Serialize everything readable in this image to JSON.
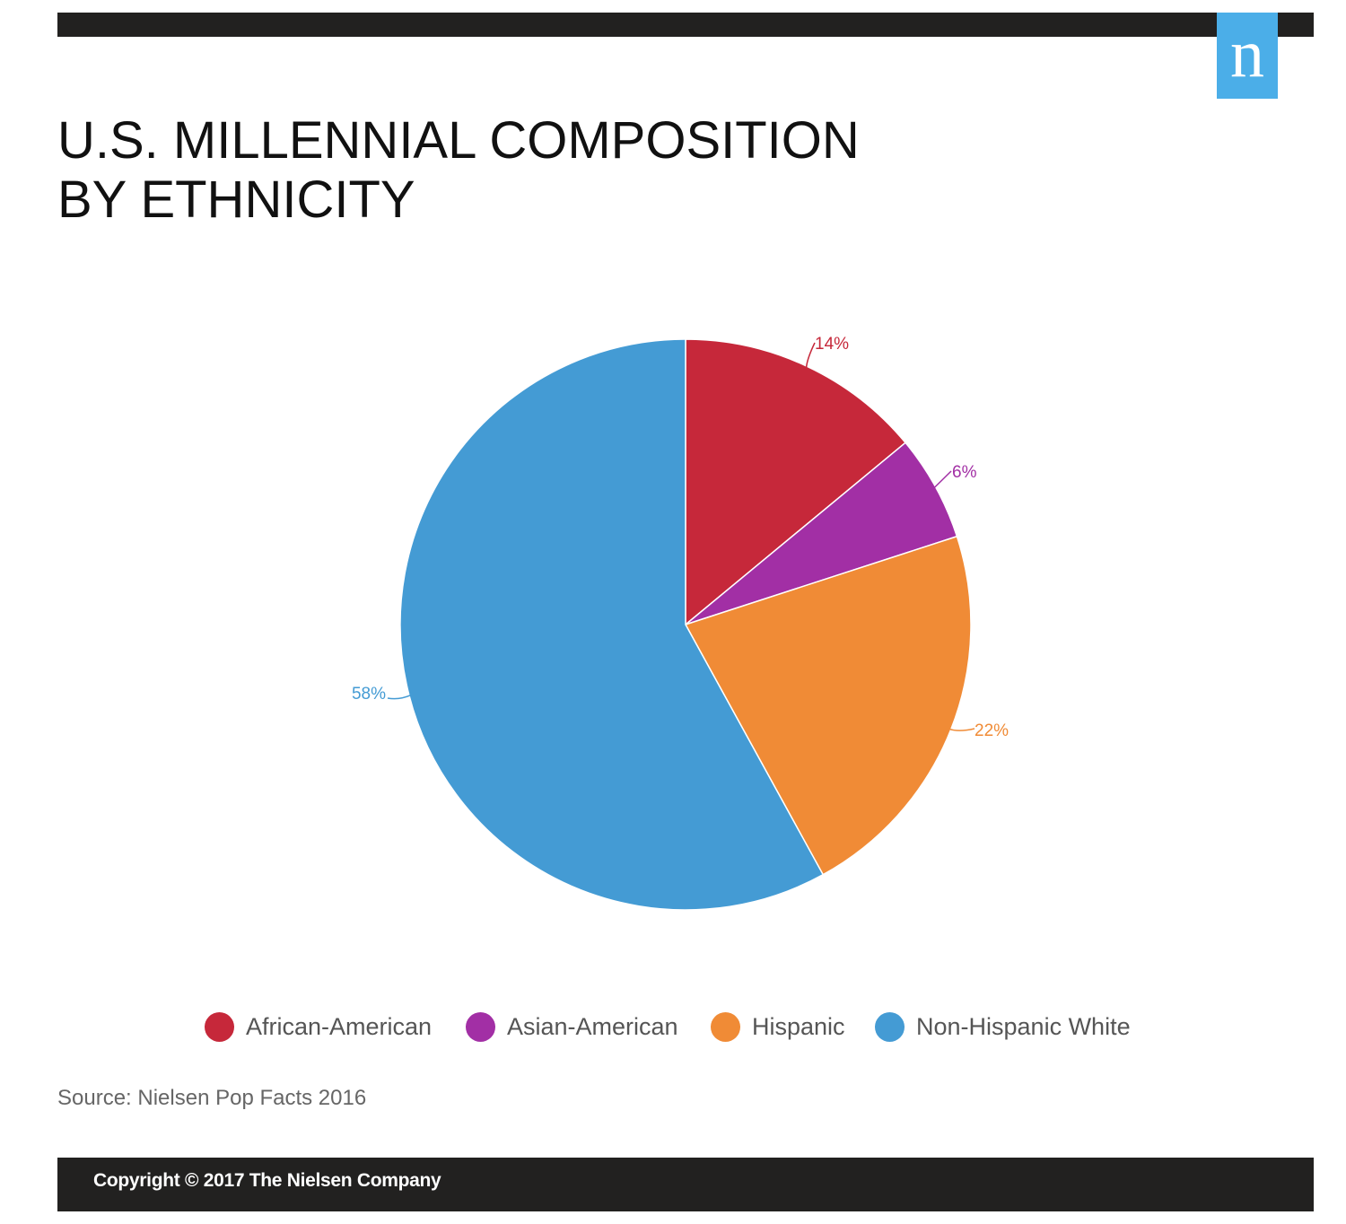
{
  "brand": {
    "logo_letter": "n",
    "logo_color": "#4baee8"
  },
  "title_lines": [
    "U.S. MILLENNIAL COMPOSITION",
    "BY ETHNICITY"
  ],
  "chart_data": {
    "type": "pie",
    "title": "U.S. MILLENNIAL COMPOSITION BY ETHNICITY",
    "labels": [
      "African-American",
      "Asian-American",
      "Hispanic",
      "Non-Hispanic White"
    ],
    "values": [
      14,
      6,
      22,
      58
    ],
    "data_labels": [
      "14%",
      "6%",
      "22%",
      "58%"
    ],
    "colors": [
      "#c6283a",
      "#a22fa5",
      "#f08b36",
      "#449bd4"
    ],
    "start_angle_deg": 0,
    "direction": "clockwise",
    "legend": {
      "placement": "bottom",
      "entries": [
        "African-American",
        "Asian-American",
        "Hispanic",
        "Non-Hispanic White"
      ]
    }
  },
  "source": "Source: Nielsen Pop Facts 2016",
  "footer": {
    "copyright": "Copyright © 2017 The Nielsen Company"
  }
}
